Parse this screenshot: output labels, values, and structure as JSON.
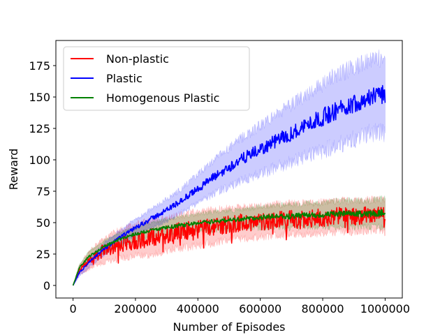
{
  "chart_data": {
    "type": "line",
    "xlabel": "Number of Episodes",
    "ylabel": "Reward",
    "xlim": [
      -55000,
      1055000
    ],
    "ylim": [
      -10,
      195
    ],
    "x_ticks": [
      0,
      200000,
      400000,
      600000,
      800000,
      1000000
    ],
    "x_tick_labels": [
      "0",
      "200000",
      "400000",
      "600000",
      "800000",
      "1000000"
    ],
    "y_ticks": [
      0,
      25,
      50,
      75,
      100,
      125,
      150,
      175
    ],
    "y_tick_labels": [
      "0",
      "25",
      "50",
      "75",
      "100",
      "125",
      "150",
      "175"
    ],
    "grid": false,
    "legend_position": "upper-left",
    "x": [
      0,
      20000,
      50000,
      100000,
      150000,
      200000,
      250000,
      300000,
      350000,
      400000,
      450000,
      500000,
      550000,
      600000,
      650000,
      700000,
      750000,
      800000,
      850000,
      900000,
      950000,
      1000000
    ],
    "series": [
      {
        "name": "Non-plastic",
        "color": "#ff0000",
        "values": [
          0,
          12,
          20,
          28,
          33,
          36,
          38,
          41,
          43,
          45,
          47,
          49,
          50,
          51,
          52,
          53,
          53,
          54,
          55,
          55,
          56,
          55
        ],
        "band": [
          0,
          4,
          7,
          10,
          12,
          13,
          14,
          14,
          14,
          14,
          14,
          13,
          13,
          13,
          13,
          13,
          13,
          13,
          13,
          13,
          13,
          13
        ]
      },
      {
        "name": "Plastic",
        "color": "#0000ff",
        "values": [
          0,
          10,
          18,
          29,
          38,
          46,
          53,
          60,
          68,
          77,
          86,
          94,
          102,
          108,
          115,
          121,
          128,
          134,
          140,
          145,
          150,
          152
        ],
        "band": [
          0,
          3,
          4,
          5,
          6,
          7,
          8,
          9,
          10,
          12,
          14,
          16,
          18,
          20,
          22,
          24,
          26,
          28,
          30,
          30,
          30,
          32
        ]
      },
      {
        "name": "Homogenous Plastic",
        "color": "#008000",
        "values": [
          0,
          14,
          23,
          31,
          37,
          41,
          44,
          46,
          48,
          50,
          51,
          52,
          53,
          54,
          55,
          55,
          56,
          56,
          57,
          57,
          57,
          58
        ],
        "band": [
          0,
          3,
          4,
          5,
          5,
          6,
          6,
          7,
          7,
          7,
          8,
          8,
          8,
          9,
          9,
          10,
          10,
          10,
          11,
          11,
          11,
          12
        ]
      }
    ]
  }
}
